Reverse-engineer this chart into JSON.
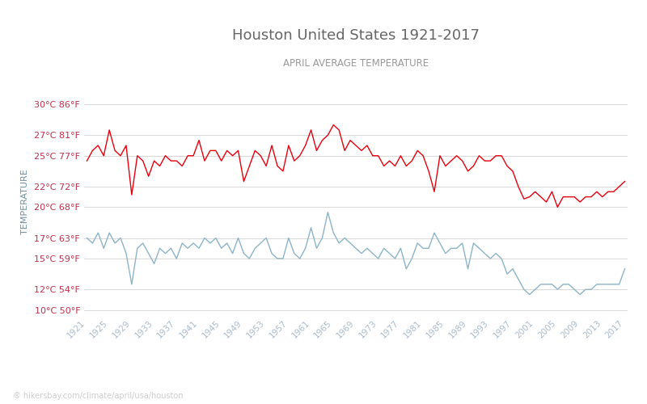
{
  "title": "Houston United States 1921-2017",
  "subtitle": "APRIL AVERAGE TEMPERATURE",
  "ylabel": "TEMPERATURE",
  "xlabel_note": "hikersbay.com/climate/april/usa/houston",
  "years": [
    1921,
    1922,
    1923,
    1924,
    1925,
    1926,
    1927,
    1928,
    1929,
    1930,
    1931,
    1932,
    1933,
    1934,
    1935,
    1936,
    1937,
    1938,
    1939,
    1940,
    1941,
    1942,
    1943,
    1944,
    1945,
    1946,
    1947,
    1948,
    1949,
    1950,
    1951,
    1952,
    1953,
    1954,
    1955,
    1956,
    1957,
    1958,
    1959,
    1960,
    1961,
    1962,
    1963,
    1964,
    1965,
    1966,
    1967,
    1968,
    1969,
    1970,
    1971,
    1972,
    1973,
    1974,
    1975,
    1976,
    1977,
    1978,
    1979,
    1980,
    1981,
    1982,
    1983,
    1984,
    1985,
    1986,
    1987,
    1988,
    1989,
    1990,
    1991,
    1992,
    1993,
    1994,
    1995,
    1996,
    1997,
    1998,
    1999,
    2000,
    2001,
    2002,
    2003,
    2004,
    2005,
    2006,
    2007,
    2008,
    2009,
    2010,
    2011,
    2012,
    2013,
    2014,
    2015,
    2016,
    2017
  ],
  "day_temps": [
    24.5,
    25.5,
    26.0,
    25.0,
    27.5,
    25.5,
    25.0,
    26.0,
    21.2,
    25.0,
    24.5,
    23.0,
    24.5,
    24.0,
    25.0,
    24.5,
    24.5,
    24.0,
    25.0,
    25.0,
    26.5,
    24.5,
    25.5,
    25.5,
    24.5,
    25.5,
    25.0,
    25.5,
    22.5,
    24.0,
    25.5,
    25.0,
    24.0,
    26.0,
    24.0,
    23.5,
    26.0,
    24.5,
    25.0,
    26.0,
    27.5,
    25.5,
    26.5,
    27.0,
    28.0,
    27.5,
    25.5,
    26.5,
    26.0,
    25.5,
    26.0,
    25.0,
    25.0,
    24.0,
    24.5,
    24.0,
    25.0,
    24.0,
    24.5,
    25.5,
    25.0,
    23.5,
    21.5,
    25.0,
    24.0,
    24.5,
    25.0,
    24.5,
    23.5,
    24.0,
    25.0,
    24.5,
    24.5,
    25.0,
    25.0,
    24.0,
    23.5,
    22.0,
    20.8,
    21.0,
    21.5,
    21.0,
    20.5,
    21.5,
    20.0,
    21.0,
    21.0,
    21.0,
    20.5,
    21.0,
    21.0,
    21.5,
    21.0,
    21.5,
    21.5,
    22.0,
    22.5
  ],
  "night_temps": [
    17.0,
    16.5,
    17.5,
    16.0,
    17.5,
    16.5,
    17.0,
    15.5,
    12.5,
    16.0,
    16.5,
    15.5,
    14.5,
    16.0,
    15.5,
    16.0,
    15.0,
    16.5,
    16.0,
    16.5,
    16.0,
    17.0,
    16.5,
    17.0,
    16.0,
    16.5,
    15.5,
    17.0,
    15.5,
    15.0,
    16.0,
    16.5,
    17.0,
    15.5,
    15.0,
    15.0,
    17.0,
    15.5,
    15.0,
    16.0,
    18.0,
    16.0,
    17.0,
    19.5,
    17.5,
    16.5,
    17.0,
    16.5,
    16.0,
    15.5,
    16.0,
    15.5,
    15.0,
    16.0,
    15.5,
    15.0,
    16.0,
    14.0,
    15.0,
    16.5,
    16.0,
    16.0,
    17.5,
    16.5,
    15.5,
    16.0,
    16.0,
    16.5,
    14.0,
    16.5,
    16.0,
    15.5,
    15.0,
    15.5,
    15.0,
    13.5,
    14.0,
    13.0,
    12.0,
    11.5,
    12.0,
    12.5,
    12.5,
    12.5,
    12.0,
    12.5,
    12.5,
    12.0,
    11.5,
    12.0,
    12.0,
    12.5,
    12.5,
    12.5,
    12.5,
    12.5,
    14.0
  ],
  "yticks_c": [
    10,
    12,
    15,
    17,
    20,
    22,
    25,
    27,
    30
  ],
  "ytick_labels": [
    "10°C 50°F",
    "12°C 54°F",
    "15°C 59°F",
    "17°C 63°F",
    "20°C 68°F",
    "22°C 72°F",
    "25°C 77°F",
    "27°C 81°F",
    "30°C 86°F"
  ],
  "x_tick_years": [
    1921,
    1925,
    1929,
    1933,
    1937,
    1941,
    1945,
    1949,
    1953,
    1957,
    1961,
    1965,
    1969,
    1973,
    1977,
    1981,
    1985,
    1989,
    1993,
    1997,
    2001,
    2005,
    2009,
    2013,
    2017
  ],
  "day_color": "#e8000d",
  "night_color": "#8cb4c8",
  "grid_color": "#d8d8d8",
  "title_color": "#666666",
  "subtitle_color": "#999999",
  "label_color": "#c0304a",
  "ylabel_color": "#7090a0",
  "watermark_color": "#cccccc",
  "legend_text_color": "#888888",
  "xtick_color": "#aabbcc",
  "ylim": [
    9.5,
    31.5
  ],
  "xlim": [
    1920.5,
    2017.5
  ],
  "title_fontsize": 13,
  "subtitle_fontsize": 8.5,
  "ytick_fontsize": 8,
  "xtick_fontsize": 7.5,
  "ylabel_fontsize": 8,
  "legend_fontsize": 9,
  "watermark_fontsize": 7
}
